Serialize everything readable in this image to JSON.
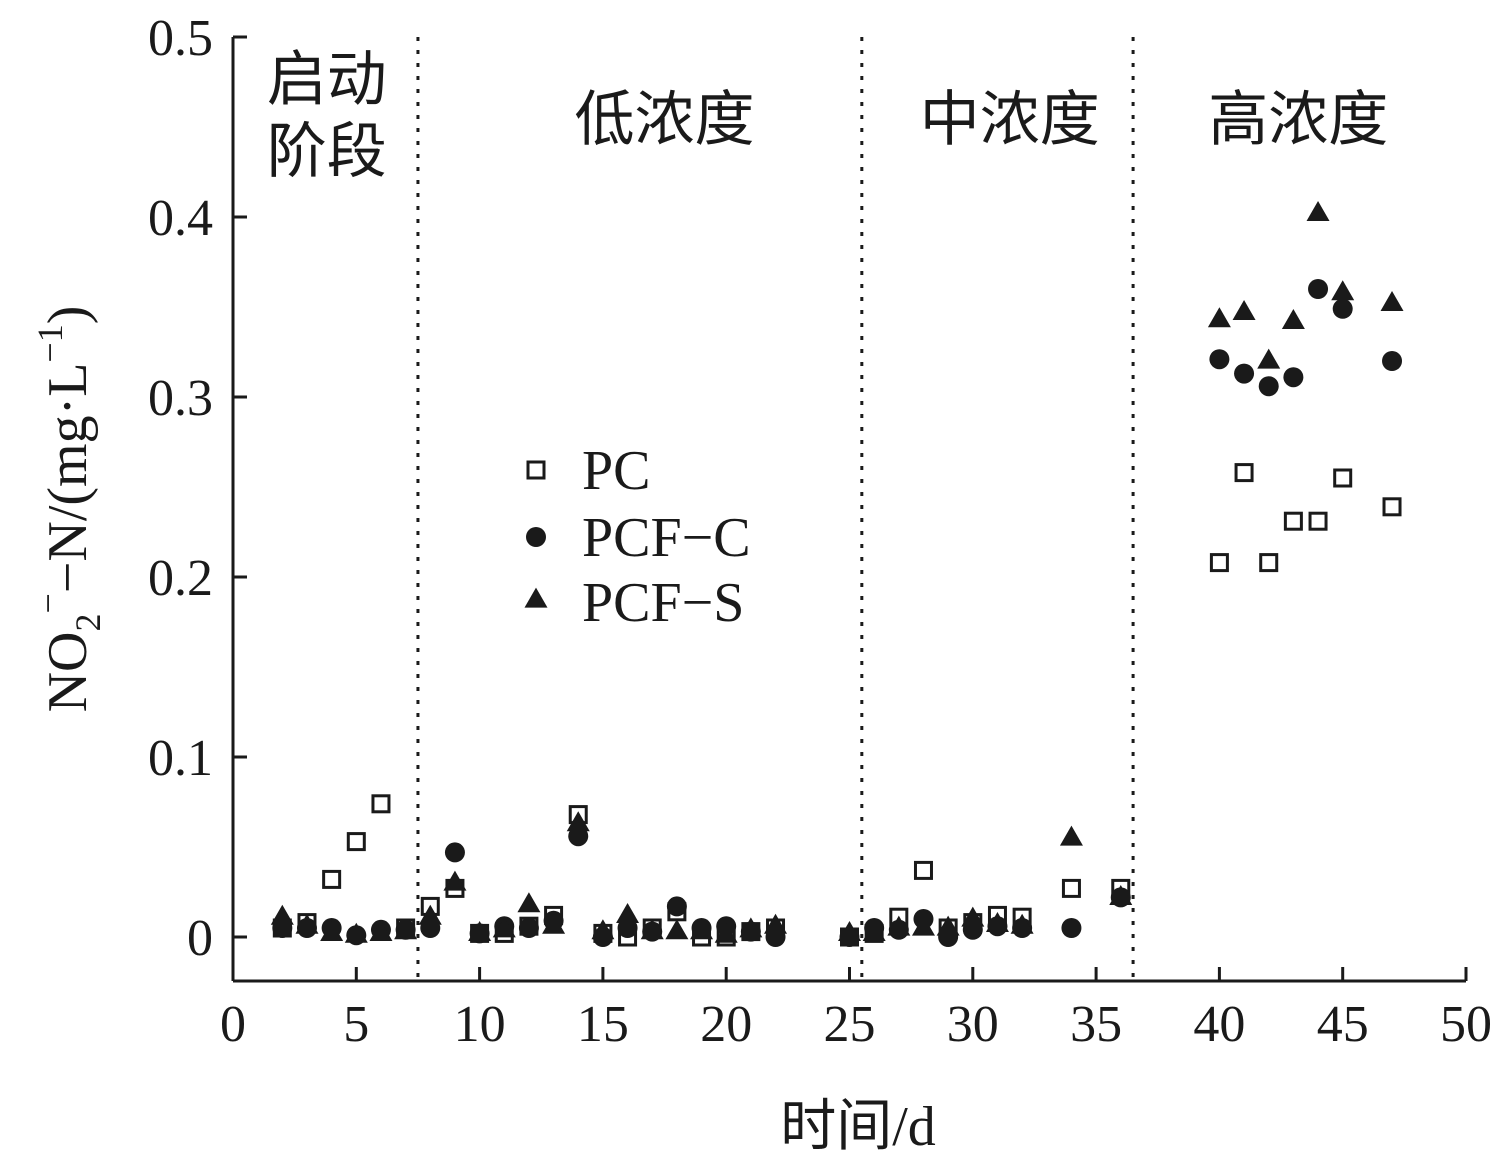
{
  "chart_data": {
    "type": "scatter",
    "xlabel": "时间/d",
    "ylabel": {
      "base": "NO",
      "sub": "2",
      "sup": "−",
      "rest": "−N/(mg·L",
      "unit_sup": "−1",
      "close": ")"
    },
    "xlim": [
      0,
      50
    ],
    "ylim": [
      0,
      0.5
    ],
    "xticks": [
      "0",
      "5",
      "10",
      "15",
      "20",
      "25",
      "30",
      "35",
      "40",
      "45",
      "50"
    ],
    "yticks": [
      "0",
      "0.1",
      "0.2",
      "0.3",
      "0.4",
      "0.5"
    ],
    "grid": false,
    "legend_position": "center-left",
    "phase_dividers": [
      7.5,
      25.5,
      36.5
    ],
    "phases": [
      {
        "lines": [
          "启动",
          "阶段"
        ],
        "center": 3.8
      },
      {
        "lines": [
          "低浓度"
        ],
        "center": 17.5
      },
      {
        "lines": [
          "中浓度"
        ],
        "center": 31.5
      },
      {
        "lines": [
          "高浓度"
        ],
        "center": 43.2
      }
    ],
    "series": [
      {
        "name": "PC",
        "marker": "open-square",
        "x": [
          2,
          3,
          4,
          5,
          6,
          7,
          8,
          9,
          10,
          11,
          12,
          13,
          14,
          15,
          16,
          17,
          18,
          19,
          20,
          21,
          22,
          25,
          26,
          27,
          28,
          29,
          30,
          31,
          32,
          34,
          36,
          40,
          41,
          42,
          43,
          44,
          45,
          47
        ],
        "y": [
          0.005,
          0.008,
          0.032,
          0.053,
          0.074,
          0.005,
          0.017,
          0.027,
          0.002,
          0.002,
          0.006,
          0.012,
          0.068,
          0.002,
          0.0,
          0.005,
          0.014,
          0.0,
          0.0,
          0.003,
          0.005,
          0.0,
          0.002,
          0.011,
          0.037,
          0.005,
          0.008,
          0.012,
          0.011,
          0.027,
          0.027,
          0.208,
          0.258,
          0.208,
          0.231,
          0.231,
          0.255,
          0.239
        ]
      },
      {
        "name": "PCF−C",
        "marker": "filled-circle",
        "x": [
          2,
          3,
          4,
          5,
          6,
          7,
          8,
          9,
          10,
          11,
          12,
          13,
          14,
          15,
          16,
          17,
          18,
          19,
          20,
          21,
          22,
          25,
          26,
          27,
          28,
          29,
          30,
          31,
          32,
          34,
          36,
          40,
          41,
          42,
          43,
          44,
          45,
          47
        ],
        "y": [
          0.005,
          0.005,
          0.005,
          0.001,
          0.004,
          0.004,
          0.005,
          0.047,
          0.002,
          0.006,
          0.005,
          0.009,
          0.056,
          0.0,
          0.005,
          0.003,
          0.017,
          0.005,
          0.006,
          0.003,
          0.0,
          0.0,
          0.005,
          0.004,
          0.01,
          0.0,
          0.004,
          0.006,
          0.005,
          0.005,
          0.022,
          0.321,
          0.313,
          0.306,
          0.311,
          0.36,
          0.349,
          0.32
        ]
      },
      {
        "name": "PCF−S",
        "marker": "filled-triangle",
        "x": [
          2,
          3,
          4,
          5,
          6,
          7,
          8,
          9,
          10,
          11,
          12,
          13,
          14,
          15,
          16,
          17,
          18,
          19,
          20,
          21,
          22,
          25,
          26,
          27,
          28,
          29,
          30,
          31,
          32,
          34,
          36,
          40,
          41,
          42,
          43,
          44,
          45,
          47
        ],
        "y": [
          0.011,
          0.006,
          0.002,
          0.001,
          0.002,
          0.003,
          0.011,
          0.03,
          0.002,
          0.004,
          0.018,
          0.006,
          0.063,
          0.003,
          0.012,
          0.003,
          0.003,
          0.003,
          0.001,
          0.004,
          0.006,
          0.002,
          0.002,
          0.005,
          0.005,
          0.005,
          0.01,
          0.007,
          0.006,
          0.055,
          0.022,
          0.343,
          0.347,
          0.32,
          0.342,
          0.402,
          0.358,
          0.352
        ]
      }
    ]
  }
}
